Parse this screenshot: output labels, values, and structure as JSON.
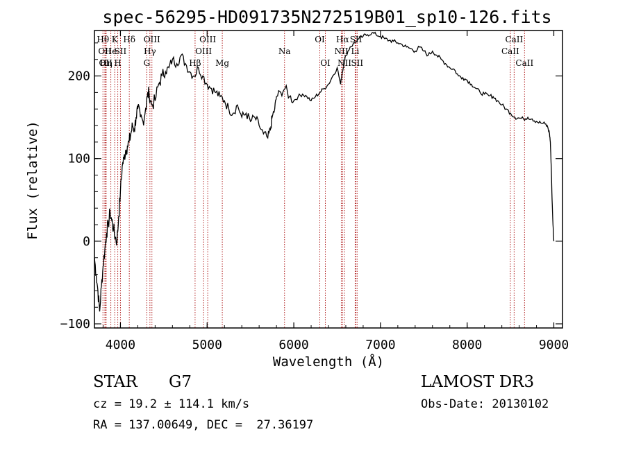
{
  "chart_data": {
    "type": "line",
    "title": "spec-56295-HD091735N272519B01_sp10-126.fits",
    "xlabel": "Wavelength (Å)",
    "ylabel": "Flux (relative)",
    "xlim": [
      3700,
      9100
    ],
    "ylim": [
      -105,
      255
    ],
    "xticks": [
      4000,
      5000,
      6000,
      7000,
      8000,
      9000
    ],
    "yticks": [
      -100,
      0,
      100,
      200
    ],
    "series": [
      {
        "name": "flux",
        "x": [
          3700,
          3720,
          3740,
          3760,
          3780,
          3800,
          3820,
          3840,
          3860,
          3880,
          3900,
          3920,
          3940,
          3960,
          3980,
          4000,
          4020,
          4040,
          4060,
          4080,
          4100,
          4120,
          4140,
          4160,
          4180,
          4200,
          4230,
          4260,
          4290,
          4310,
          4330,
          4360,
          4400,
          4440,
          4480,
          4520,
          4560,
          4600,
          4650,
          4700,
          4750,
          4800,
          4850,
          4900,
          4950,
          5000,
          5050,
          5100,
          5150,
          5200,
          5250,
          5300,
          5350,
          5400,
          5450,
          5500,
          5550,
          5600,
          5650,
          5700,
          5730,
          5750,
          5780,
          5800,
          5850,
          5900,
          5950,
          6000,
          6050,
          6100,
          6150,
          6200,
          6250,
          6300,
          6350,
          6400,
          6450,
          6500,
          6540,
          6560,
          6580,
          6600,
          6650,
          6700,
          6750,
          6800,
          6850,
          6900,
          6950,
          7000,
          7050,
          7100,
          7150,
          7200,
          7250,
          7300,
          7350,
          7400,
          7450,
          7500,
          7550,
          7600,
          7650,
          7700,
          7750,
          7800,
          7850,
          7900,
          7950,
          8000,
          8050,
          8100,
          8150,
          8200,
          8250,
          8300,
          8350,
          8400,
          8450,
          8500,
          8550,
          8600,
          8650,
          8700,
          8750,
          8800,
          8850,
          8900,
          8930,
          8950,
          8960,
          8970,
          8980,
          8990,
          9000
        ],
        "y": [
          -20,
          -40,
          -60,
          -85,
          -55,
          -30,
          -10,
          10,
          20,
          35,
          25,
          15,
          5,
          0,
          30,
          60,
          90,
          100,
          110,
          115,
          120,
          130,
          140,
          135,
          150,
          160,
          150,
          145,
          160,
          175,
          180,
          165,
          170,
          190,
          200,
          205,
          210,
          220,
          215,
          225,
          215,
          205,
          200,
          210,
          200,
          190,
          185,
          180,
          175,
          170,
          160,
          155,
          165,
          150,
          155,
          145,
          150,
          140,
          130,
          125,
          135,
          150,
          160,
          175,
          180,
          185,
          175,
          170,
          175,
          178,
          175,
          170,
          175,
          180,
          185,
          190,
          200,
          210,
          190,
          205,
          215,
          225,
          235,
          240,
          245,
          248,
          250,
          252,
          250,
          248,
          245,
          243,
          242,
          240,
          238,
          235,
          233,
          230,
          235,
          230,
          225,
          230,
          225,
          220,
          215,
          210,
          208,
          200,
          198,
          195,
          190,
          185,
          180,
          178,
          176,
          175,
          170,
          165,
          160,
          155,
          150,
          149,
          148,
          150,
          148,
          145,
          143,
          142,
          138,
          130,
          120,
          90,
          50,
          20,
          0
        ]
      }
    ],
    "line_marks": [
      {
        "wl": 3798,
        "label": "Hθ",
        "row": 0
      },
      {
        "wl": 3820,
        "label": "OII",
        "row": 1
      },
      {
        "wl": 3830,
        "label": "OII",
        "row": 2
      },
      {
        "wl": 3835,
        "label": "Hη",
        "row": 2
      },
      {
        "wl": 3889,
        "label": "He",
        "row": 1
      },
      {
        "wl": 3934,
        "label": "K",
        "row": 0
      },
      {
        "wl": 3969,
        "label": "H",
        "row": 2
      },
      {
        "wl": 4000,
        "label": "SII",
        "row": 1
      },
      {
        "wl": 4102,
        "label": "Hδ",
        "row": 0
      },
      {
        "wl": 4304,
        "label": "G",
        "row": 2
      },
      {
        "wl": 4340,
        "label": "Hγ",
        "row": 1
      },
      {
        "wl": 4363,
        "label": "OIII",
        "row": 0
      },
      {
        "wl": 4861,
        "label": "Hβ",
        "row": 2
      },
      {
        "wl": 4959,
        "label": "OIII",
        "row": 1
      },
      {
        "wl": 5007,
        "label": "OIII",
        "row": 0
      },
      {
        "wl": 5175,
        "label": "Mg",
        "row": 2
      },
      {
        "wl": 5893,
        "label": "Na",
        "row": 1
      },
      {
        "wl": 6300,
        "label": "OI",
        "row": 0
      },
      {
        "wl": 6364,
        "label": "OI",
        "row": 2
      },
      {
        "wl": 6548,
        "label": "NII",
        "row": 1
      },
      {
        "wl": 6563,
        "label": "Hα",
        "row": 0
      },
      {
        "wl": 6584,
        "label": "NII",
        "row": 2
      },
      {
        "wl": 6708,
        "label": "Li",
        "row": 1
      },
      {
        "wl": 6717,
        "label": "SII",
        "row": 0
      },
      {
        "wl": 6731,
        "label": "SII",
        "row": 2
      },
      {
        "wl": 8498,
        "label": "CaII",
        "row": 1
      },
      {
        "wl": 8542,
        "label": "CaII",
        "row": 0
      },
      {
        "wl": 8662,
        "label": "CaII",
        "row": 2
      }
    ]
  },
  "info": {
    "object_class": "STAR",
    "subclass": "G7",
    "survey": "LAMOST DR3",
    "redshift": "cz = 19.2 ± 114.1 km/s",
    "obs_date": "Obs-Date: 20130102",
    "coords": "RA = 137.00649, DEC =  27.36197"
  }
}
